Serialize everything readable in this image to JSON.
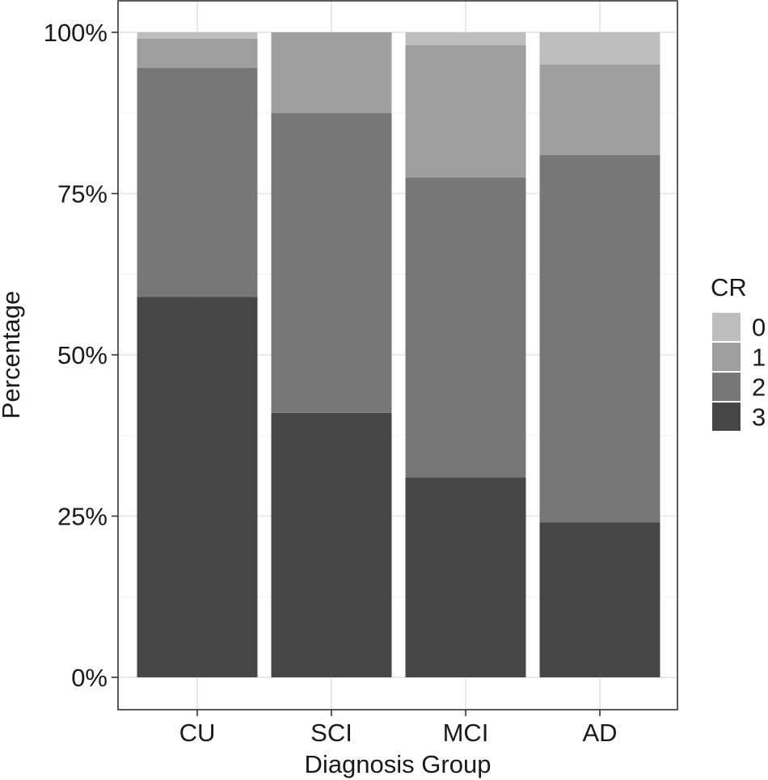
{
  "chart_data": {
    "type": "bar",
    "stacked": true,
    "percent": true,
    "categories": [
      "CU",
      "SCI",
      "MCI",
      "AD"
    ],
    "series": [
      {
        "name": "0",
        "color": "#bdbdbd",
        "values": [
          1,
          0,
          2,
          5
        ]
      },
      {
        "name": "1",
        "color": "#9e9e9e",
        "values": [
          4.5,
          12.5,
          20.5,
          14
        ]
      },
      {
        "name": "2",
        "color": "#777777",
        "values": [
          35.5,
          46.5,
          46.5,
          57
        ]
      },
      {
        "name": "3",
        "color": "#464646",
        "values": [
          59,
          41,
          31,
          24
        ]
      }
    ],
    "stack_order_bottom_to_top": [
      "3",
      "2",
      "1",
      "0"
    ],
    "xlabel": "Diagnosis Group",
    "ylabel": "Percentage",
    "ylim": [
      0,
      100
    ],
    "yticks": [
      0,
      25,
      50,
      75,
      100
    ],
    "ytick_labels": [
      "0%",
      "25%",
      "50%",
      "75%",
      "100%"
    ],
    "grid": true,
    "legend": {
      "title": "CR",
      "position": "right"
    }
  }
}
